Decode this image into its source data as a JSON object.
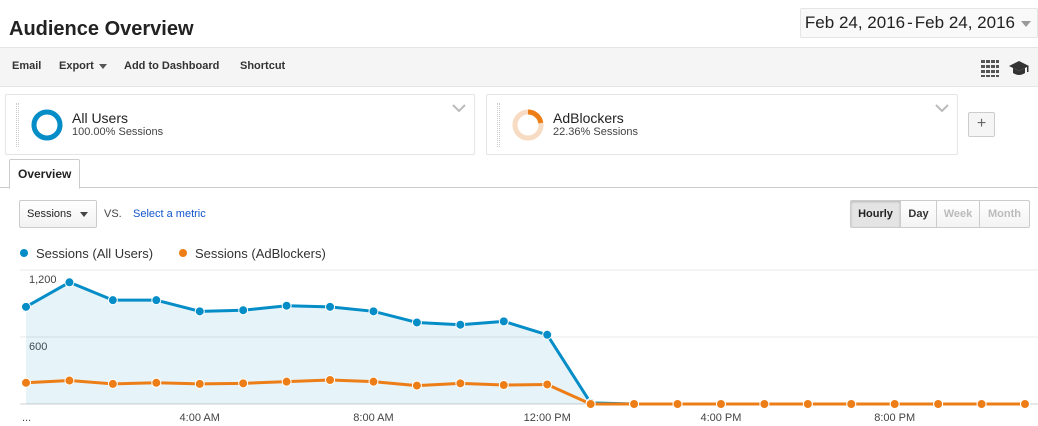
{
  "page": {
    "title": "Audience Overview",
    "date_start": "Feb 24, 2016",
    "date_sep": "-",
    "date_end": "Feb 24, 2016"
  },
  "toolbar": {
    "email_label": "Email",
    "export_label": "Export",
    "add_dashboard_label": "Add to Dashboard",
    "shortcut_label": "Shortcut",
    "icons": [
      "grid-icon",
      "graduation-cap-icon"
    ]
  },
  "segments": [
    {
      "name": "All Users",
      "sub": "100.00% Sessions",
      "color": "#058dc7",
      "share": 1.0
    },
    {
      "name": "AdBlockers",
      "sub": "22.36% Sessions",
      "color": "#ed7e17",
      "share": 0.2236
    }
  ],
  "add_segment_label": "+",
  "tabs": {
    "overview": "Overview"
  },
  "metric": {
    "selected": "Sessions",
    "vs_label": "VS.",
    "select_metric_label": "Select a metric"
  },
  "granularity": {
    "hourly": "Hourly",
    "day": "Day",
    "week": "Week",
    "month": "Month",
    "active": "Hourly"
  },
  "legend": {
    "series_1": "Sessions (All Users)",
    "series_2": "Sessions (AdBlockers)"
  },
  "chart_data": {
    "type": "area",
    "x": [
      "12:00 AM",
      "1:00 AM",
      "2:00 AM",
      "3:00 AM",
      "4:00 AM",
      "5:00 AM",
      "6:00 AM",
      "7:00 AM",
      "8:00 AM",
      "9:00 AM",
      "10:00 AM",
      "11:00 AM",
      "12:00 PM",
      "1:00 PM",
      "2:00 PM",
      "3:00 PM",
      "4:00 PM",
      "5:00 PM",
      "6:00 PM",
      "7:00 PM",
      "8:00 PM",
      "9:00 PM",
      "10:00 PM",
      "11:00 PM"
    ],
    "x_tick_labels": [
      "...",
      "4:00 AM",
      "8:00 AM",
      "12:00 PM",
      "4:00 PM",
      "8:00 PM"
    ],
    "y_tick_labels": [
      "1,200",
      "600"
    ],
    "ylim": [
      0,
      1200
    ],
    "series": [
      {
        "name": "Sessions (All Users)",
        "color": "#058dc7",
        "filled": true,
        "values": [
          870,
          1090,
          930,
          930,
          830,
          840,
          880,
          870,
          830,
          730,
          710,
          740,
          620,
          10,
          0,
          0,
          0,
          0,
          0,
          0,
          0,
          0,
          0,
          0
        ]
      },
      {
        "name": "Sessions (AdBlockers)",
        "color": "#ed7e17",
        "filled": false,
        "values": [
          190,
          210,
          180,
          190,
          180,
          185,
          200,
          215,
          200,
          165,
          185,
          170,
          175,
          0,
          0,
          0,
          0,
          0,
          0,
          0,
          0,
          0,
          0,
          0
        ]
      }
    ],
    "grid": true,
    "legend_position": "top-left"
  }
}
